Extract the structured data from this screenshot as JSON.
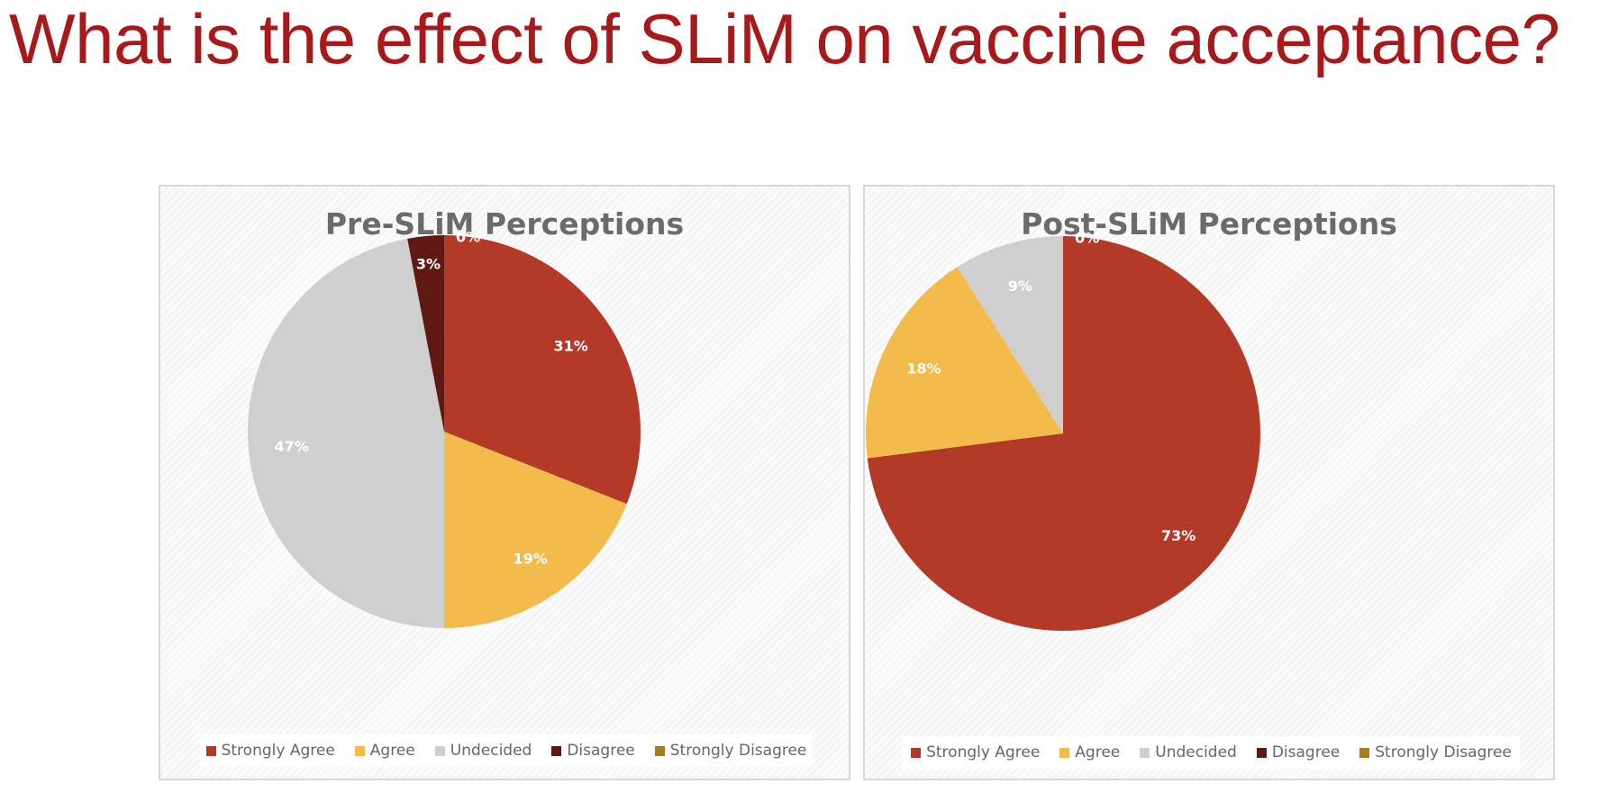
{
  "slide": {
    "title": "What is the effect of SLiM on vaccine acceptance?"
  },
  "chart_data": [
    {
      "type": "pie",
      "title": "Pre-SLiM Perceptions",
      "categories": [
        "Strongly Agree",
        "Agree",
        "Undecided",
        "Disagree",
        "Strongly Disagree"
      ],
      "values": [
        31,
        19,
        47,
        3,
        0
      ],
      "labels": [
        "31%",
        "19%",
        "47%",
        "3%",
        "0%"
      ],
      "colors": [
        "#b33a26",
        "#f3bb4c",
        "#cfcfcf",
        "#5e1a12",
        "#a67c1c"
      ],
      "legend_position": "bottom"
    },
    {
      "type": "pie",
      "title": "Post-SLiM Perceptions",
      "categories": [
        "Strongly Agree",
        "Agree",
        "Undecided",
        "Disagree",
        "Strongly Disagree"
      ],
      "values": [
        73,
        18,
        9,
        0,
        0
      ],
      "labels": [
        "73%",
        "18%",
        "9%",
        "",
        "0%"
      ],
      "colors": [
        "#b33a26",
        "#f3bb4c",
        "#cfcfcf",
        "#5e1a12",
        "#a67c1c"
      ],
      "legend_position": "bottom"
    }
  ]
}
